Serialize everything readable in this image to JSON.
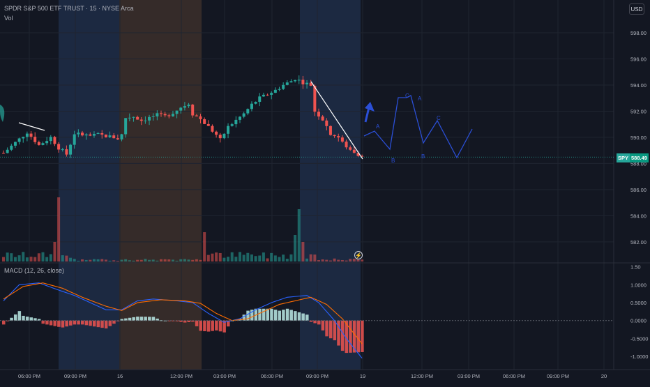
{
  "header": {
    "title": "SPDR S&P 500 ETF TRUST · 15 · NYSE Arca",
    "volume_label": "Vol",
    "macd_label": "MACD (12, 26, close)",
    "currency_button": "USD"
  },
  "price_tag": {
    "ticker": "SPY",
    "value": "588.49"
  },
  "alert_icon": "lightning-icon",
  "colors": {
    "background": "#131722",
    "up": "#26a69a",
    "down": "#ef5350",
    "macd_line": "#2962ff",
    "signal_line": "#ff6d00",
    "drawing_blue": "#2b4fd6",
    "session_blue": "#1e2b45",
    "session_orange": "#3a2e2a"
  },
  "wave_labels": [
    "A",
    "B",
    "C",
    "A",
    "B",
    "C"
  ],
  "chart_data": [
    {
      "type": "candlestick",
      "title": "SPDR S&P 500 ETF TRUST · 15 · NYSE Arca",
      "y_ticks": [
        "598.00",
        "596.00",
        "594.00",
        "592.00",
        "590.00",
        "588.00",
        "586.00",
        "584.00",
        "582.00"
      ],
      "x_ticks": [
        "06:00 PM",
        "09:00 PM",
        "16",
        "12:00 PM",
        "03:00 PM",
        "06:00 PM",
        "09:00 PM",
        "19",
        "12:00 PM",
        "03:00 PM",
        "06:00 PM",
        "09:00 PM",
        "20"
      ],
      "last_price": 588.49,
      "ylim": [
        581.3,
        598.8
      ],
      "close_path": [
        [
          0,
          588.8
        ],
        [
          3,
          589.6
        ],
        [
          6,
          590.4
        ],
        [
          9,
          589.4
        ],
        [
          12,
          590.0
        ],
        [
          14,
          589.2
        ],
        [
          16,
          588.7
        ],
        [
          18,
          590.3
        ],
        [
          20,
          590.2
        ],
        [
          22,
          590.1
        ],
        [
          24,
          590.2
        ],
        [
          26,
          590.1
        ],
        [
          28,
          590.0
        ],
        [
          29,
          589.9
        ],
        [
          30,
          590.2
        ],
        [
          31,
          591.5
        ],
        [
          33,
          591.6
        ],
        [
          35,
          591.3
        ],
        [
          37,
          591.5
        ],
        [
          39,
          591.7
        ],
        [
          41,
          591.6
        ],
        [
          43,
          591.9
        ],
        [
          45,
          592.3
        ],
        [
          47,
          592.6
        ],
        [
          48,
          591.8
        ],
        [
          50,
          591.4
        ],
        [
          52,
          590.8
        ],
        [
          54,
          590.2
        ],
        [
          55,
          589.8
        ],
        [
          57,
          590.8
        ],
        [
          59,
          591.3
        ],
        [
          61,
          591.8
        ],
        [
          63,
          592.5
        ],
        [
          65,
          593.0
        ],
        [
          67,
          593.3
        ],
        [
          69,
          593.6
        ],
        [
          71,
          594.0
        ],
        [
          73,
          594.3
        ],
        [
          74,
          594.5
        ],
        [
          76,
          594.2
        ],
        [
          78,
          594.0
        ],
        [
          79,
          592.0
        ],
        [
          81,
          591.4
        ],
        [
          83,
          590.3
        ],
        [
          85,
          590.0
        ],
        [
          87,
          589.2
        ],
        [
          89,
          588.9
        ],
        [
          91,
          588.5
        ]
      ],
      "macd_path": [
        [
          0,
          0.55
        ],
        [
          4,
          1.0
        ],
        [
          9,
          1.05
        ],
        [
          14,
          0.85
        ],
        [
          18,
          0.7
        ],
        [
          22,
          0.5
        ],
        [
          26,
          0.3
        ],
        [
          30,
          0.3
        ],
        [
          34,
          0.55
        ],
        [
          38,
          0.6
        ],
        [
          44,
          0.55
        ],
        [
          48,
          0.5
        ],
        [
          52,
          0.2
        ],
        [
          56,
          -0.05
        ],
        [
          60,
          0.05
        ],
        [
          64,
          0.3
        ],
        [
          68,
          0.5
        ],
        [
          72,
          0.65
        ],
        [
          77,
          0.7
        ],
        [
          80,
          0.5
        ],
        [
          84,
          0.0
        ],
        [
          87,
          -0.5
        ],
        [
          91,
          -1.05
        ]
      ],
      "signal_path": [
        [
          0,
          0.6
        ],
        [
          5,
          0.95
        ],
        [
          10,
          1.05
        ],
        [
          15,
          0.9
        ],
        [
          20,
          0.65
        ],
        [
          26,
          0.4
        ],
        [
          30,
          0.28
        ],
        [
          34,
          0.5
        ],
        [
          40,
          0.58
        ],
        [
          46,
          0.55
        ],
        [
          50,
          0.48
        ],
        [
          54,
          0.2
        ],
        [
          58,
          0.0
        ],
        [
          62,
          0.05
        ],
        [
          66,
          0.25
        ],
        [
          70,
          0.45
        ],
        [
          74,
          0.55
        ],
        [
          78,
          0.65
        ],
        [
          82,
          0.45
        ],
        [
          86,
          0.05
        ],
        [
          91,
          -0.65
        ]
      ],
      "macd_ticks": [
        "1.50",
        "1.0000",
        "0.5000",
        "0.0000",
        "-0.5000",
        "-1.0000"
      ],
      "macd_ylim": [
        -1.25,
        1.55
      ]
    }
  ]
}
